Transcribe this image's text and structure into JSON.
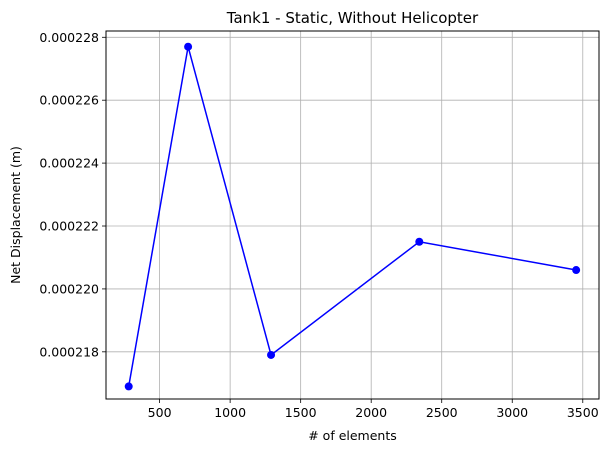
{
  "chart_data": {
    "type": "line",
    "title": "Tank1 - Static, Without Helicopter",
    "xlabel": "# of elements",
    "ylabel": "Net Displacement (m)",
    "x": [
      281,
      702,
      1290,
      2341,
      3453
    ],
    "series": [
      {
        "values": [
          0.0002169,
          0.0002277,
          0.0002179,
          0.0002215,
          0.0002206
        ],
        "color": "#0000ff",
        "marker": "circle"
      }
    ],
    "xlim": [
      120,
      3615
    ],
    "ylim": [
      0.0002165,
      0.0002282
    ],
    "xticks": [
      500,
      1000,
      1500,
      2000,
      2500,
      3000,
      3500
    ],
    "xtick_labels": [
      "500",
      "1000",
      "1500",
      "2000",
      "2500",
      "3000",
      "3500"
    ],
    "yticks": [
      0.000218,
      0.00022,
      0.000222,
      0.000224,
      0.000226,
      0.000228
    ],
    "ytick_labels": [
      "0.000218",
      "0.000220",
      "0.000222",
      "0.000224",
      "0.000226",
      "0.000228"
    ],
    "grid": true,
    "legend": false
  }
}
